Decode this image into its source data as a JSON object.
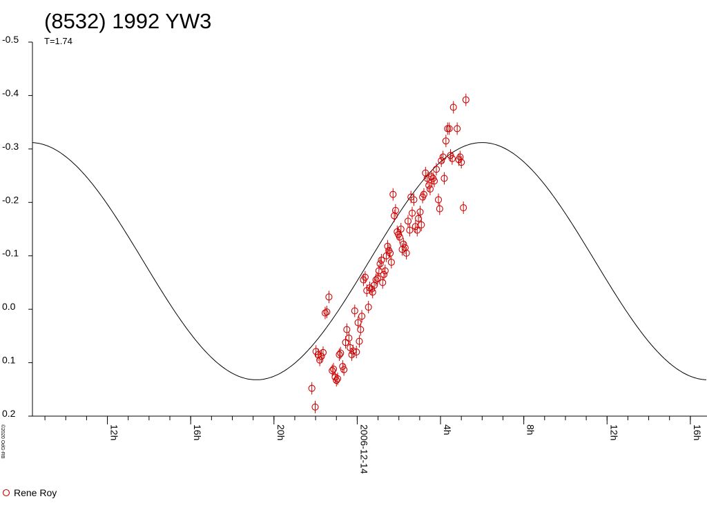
{
  "chart_data": {
    "type": "scatter",
    "title": "(8532) 1992 YW3",
    "subtitle": "T=1.74",
    "copyright": "©2020 OdG-RB",
    "date_label": "2006-12-14",
    "ylim": [
      -0.5,
      0.2
    ],
    "y_inverted": true,
    "yticks": [
      "-0.5",
      "-0.4",
      "-0.3",
      "-0.2",
      "-0.1",
      "0.0",
      "0.1",
      "0.2"
    ],
    "ytick_values": [
      -0.5,
      -0.4,
      -0.3,
      -0.2,
      -0.1,
      0.0,
      0.1,
      0.2
    ],
    "xlim_hours": [
      8.4,
      40.8
    ],
    "xticks": [
      {
        "hour": 12,
        "label": "12h"
      },
      {
        "hour": 16,
        "label": "16h"
      },
      {
        "hour": 20,
        "label": "20h"
      },
      {
        "hour": 24,
        "label": "2006-12-14"
      },
      {
        "hour": 28,
        "label": "4h"
      },
      {
        "hour": 32,
        "label": "8h"
      },
      {
        "hour": 36,
        "label": "12h"
      },
      {
        "hour": 40,
        "label": "16h"
      }
    ],
    "minor_tick_step_hours": 1,
    "model_curve": {
      "period_hours": 21.7,
      "amplitude": 0.222,
      "mean": -0.09,
      "max_hour": 30.0,
      "color": "#000000"
    },
    "series": [
      {
        "name": "Rene Roy",
        "marker": "circle",
        "color": "#cc0000",
        "points": [
          [
            21.82,
            0.148
          ],
          [
            21.98,
            0.183
          ],
          [
            22.02,
            0.079
          ],
          [
            22.12,
            0.085
          ],
          [
            22.2,
            0.095
          ],
          [
            22.28,
            0.088
          ],
          [
            22.36,
            0.081
          ],
          [
            22.46,
            0.007
          ],
          [
            22.54,
            0.005
          ],
          [
            22.64,
            -0.023
          ],
          [
            22.8,
            0.115
          ],
          [
            22.86,
            0.112
          ],
          [
            22.94,
            0.127
          ],
          [
            23.0,
            0.133
          ],
          [
            23.06,
            0.13
          ],
          [
            23.14,
            0.085
          ],
          [
            23.2,
            0.082
          ],
          [
            23.3,
            0.107
          ],
          [
            23.36,
            0.113
          ],
          [
            23.44,
            0.062
          ],
          [
            23.5,
            0.038
          ],
          [
            23.6,
            0.054
          ],
          [
            23.66,
            0.072
          ],
          [
            23.74,
            0.085
          ],
          [
            23.8,
            0.078
          ],
          [
            23.88,
            0.003
          ],
          [
            23.96,
            0.08
          ],
          [
            24.04,
            0.025
          ],
          [
            24.1,
            0.06
          ],
          [
            24.16,
            0.038
          ],
          [
            24.22,
            0.013
          ],
          [
            24.3,
            -0.055
          ],
          [
            24.38,
            -0.06
          ],
          [
            24.46,
            -0.035
          ],
          [
            24.54,
            -0.004
          ],
          [
            24.6,
            -0.04
          ],
          [
            24.68,
            -0.038
          ],
          [
            24.74,
            -0.032
          ],
          [
            24.82,
            -0.045
          ],
          [
            24.9,
            -0.055
          ],
          [
            24.98,
            -0.058
          ],
          [
            25.04,
            -0.072
          ],
          [
            25.1,
            -0.085
          ],
          [
            25.16,
            -0.092
          ],
          [
            25.22,
            -0.05
          ],
          [
            25.28,
            -0.065
          ],
          [
            25.34,
            -0.072
          ],
          [
            25.4,
            -0.1
          ],
          [
            25.46,
            -0.118
          ],
          [
            25.52,
            -0.11
          ],
          [
            25.58,
            -0.105
          ],
          [
            25.64,
            -0.088
          ],
          [
            25.72,
            -0.215
          ],
          [
            25.78,
            -0.175
          ],
          [
            25.84,
            -0.185
          ],
          [
            25.92,
            -0.145
          ],
          [
            25.98,
            -0.14
          ],
          [
            26.04,
            -0.135
          ],
          [
            26.1,
            -0.15
          ],
          [
            26.16,
            -0.112
          ],
          [
            26.22,
            -0.122
          ],
          [
            26.3,
            -0.115
          ],
          [
            26.36,
            -0.105
          ],
          [
            26.44,
            -0.165
          ],
          [
            26.52,
            -0.148
          ],
          [
            26.58,
            -0.21
          ],
          [
            26.64,
            -0.18
          ],
          [
            26.72,
            -0.205
          ],
          [
            26.8,
            -0.155
          ],
          [
            26.88,
            -0.148
          ],
          [
            26.94,
            -0.17
          ],
          [
            27.02,
            -0.182
          ],
          [
            27.08,
            -0.158
          ],
          [
            27.14,
            -0.21
          ],
          [
            27.2,
            -0.215
          ],
          [
            27.28,
            -0.255
          ],
          [
            27.36,
            -0.245
          ],
          [
            27.44,
            -0.232
          ],
          [
            27.5,
            -0.225
          ],
          [
            27.56,
            -0.248
          ],
          [
            27.64,
            -0.245
          ],
          [
            27.7,
            -0.24
          ],
          [
            27.8,
            -0.262
          ],
          [
            27.9,
            -0.205
          ],
          [
            27.96,
            -0.188
          ],
          [
            28.04,
            -0.278
          ],
          [
            28.12,
            -0.285
          ],
          [
            28.18,
            -0.245
          ],
          [
            28.26,
            -0.315
          ],
          [
            28.34,
            -0.338
          ],
          [
            28.42,
            -0.338
          ],
          [
            28.48,
            -0.288
          ],
          [
            28.56,
            -0.282
          ],
          [
            28.62,
            -0.378
          ],
          [
            28.8,
            -0.338
          ],
          [
            28.88,
            -0.28
          ],
          [
            28.94,
            -0.285
          ],
          [
            29.0,
            -0.275
          ],
          [
            29.1,
            -0.19
          ],
          [
            29.22,
            -0.392
          ]
        ]
      }
    ],
    "legend": {
      "position": "bottom-left",
      "entries": [
        "Rene Roy"
      ]
    }
  }
}
